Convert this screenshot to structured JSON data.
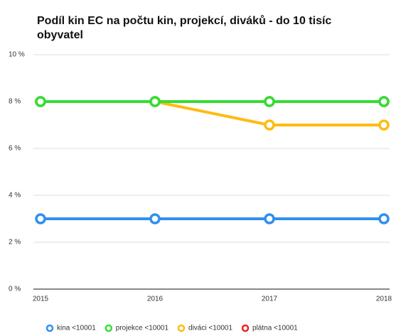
{
  "chart_data": {
    "type": "line",
    "title": "Podíl kin EC na počtu kin, projekcí, diváků - do 10 tisíc obyvatel",
    "categories": [
      "2015",
      "2016",
      "2017",
      "2018"
    ],
    "series": [
      {
        "name": "kina <10001",
        "color": "#2f8ff0",
        "values": [
          3,
          3,
          3,
          3
        ]
      },
      {
        "name": "projekce <10001",
        "color": "#33dd33",
        "values": [
          8,
          8,
          8,
          8
        ]
      },
      {
        "name": "diváci <10001",
        "color": "#ffbb11",
        "values": [
          8,
          8,
          7,
          7
        ]
      },
      {
        "name": "plátna <10001",
        "color": "#ee2222",
        "values": [
          8,
          8,
          8,
          8
        ]
      }
    ],
    "ylim": [
      0,
      10
    ],
    "yticks": [
      {
        "value": 0,
        "label": "0 %"
      },
      {
        "value": 2,
        "label": "2 %"
      },
      {
        "value": 4,
        "label": "4 %"
      },
      {
        "value": 6,
        "label": "6 %"
      },
      {
        "value": 8,
        "label": "8 %"
      },
      {
        "value": 10,
        "label": "10 %"
      }
    ],
    "grid": true,
    "legend": "bottom"
  }
}
